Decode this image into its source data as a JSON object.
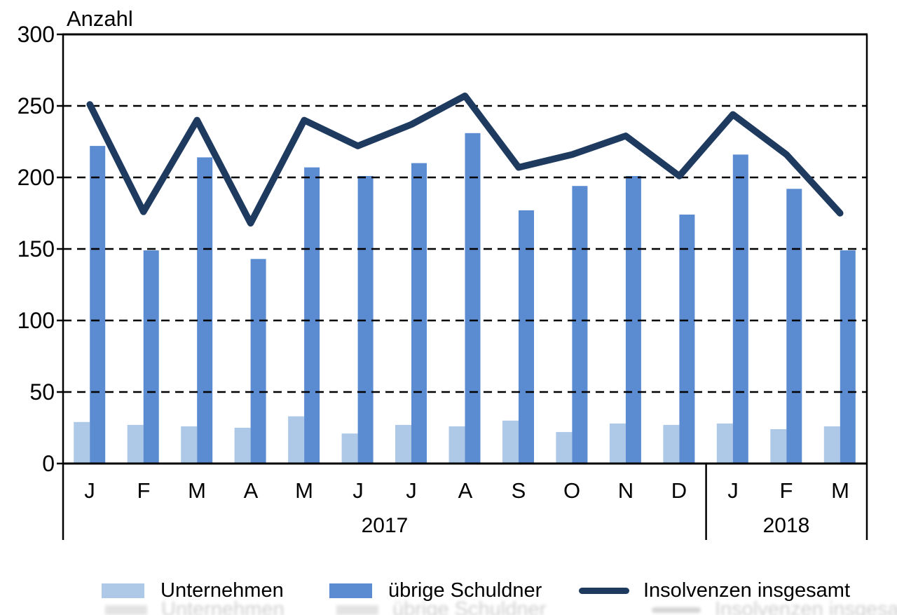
{
  "chart_data": {
    "type": "bar+line",
    "title": "",
    "ylabel": "Anzahl",
    "xlabel": "",
    "ylim": [
      0,
      300
    ],
    "ytick_interval": 50,
    "yticks": [
      0,
      50,
      100,
      150,
      200,
      250,
      300
    ],
    "grid": "horizontal dashed black lines at every 50, drawn over bars",
    "legend_position": "bottom",
    "categories": [
      "J",
      "F",
      "M",
      "A",
      "M",
      "J",
      "J",
      "A",
      "S",
      "O",
      "N",
      "D",
      "J",
      "F",
      "M"
    ],
    "year_groups": [
      {
        "label": "2017",
        "months": 12
      },
      {
        "label": "2018",
        "months": 3
      }
    ],
    "series": [
      {
        "name": "Unternehmen",
        "type": "bar",
        "color": "#aec9e8",
        "values": [
          29,
          27,
          26,
          25,
          33,
          21,
          27,
          26,
          30,
          22,
          28,
          27,
          28,
          24,
          26
        ]
      },
      {
        "name": "übrige Schuldner",
        "type": "bar",
        "color": "#5b8bd1",
        "values": [
          222,
          149,
          214,
          143,
          207,
          201,
          210,
          231,
          177,
          194,
          201,
          174,
          216,
          192,
          149
        ]
      },
      {
        "name": "Insolvenzen insgesamt",
        "type": "line",
        "color": "#1e3a5f",
        "values": [
          251,
          176,
          240,
          168,
          240,
          222,
          237,
          257,
          207,
          216,
          229,
          201,
          244,
          216,
          175
        ]
      }
    ],
    "colors": {
      "axis": "#000000",
      "grid": "#000000",
      "text": "#000000",
      "background": "#ffffff"
    }
  }
}
